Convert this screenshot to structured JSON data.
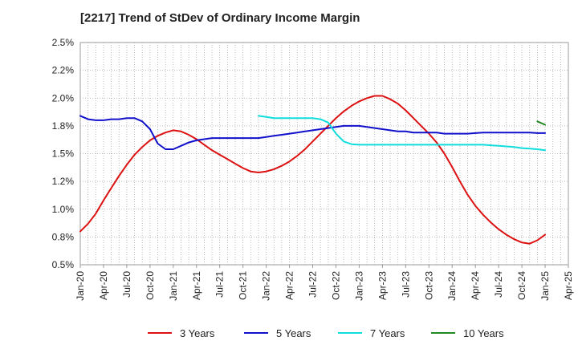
{
  "chart_data": {
    "type": "line",
    "title": "[2217]  Trend of StDev of Ordinary Income Margin",
    "xlabel": "",
    "ylabel": "",
    "ylim": [
      0.5,
      2.5
    ],
    "y_ticks": [
      "0.5%",
      "0.8%",
      "1.0%",
      "1.2%",
      "1.5%",
      "1.8%",
      "2.0%",
      "2.2%",
      "2.5%"
    ],
    "x_ticks": [
      "Jan-20",
      "Apr-20",
      "Jul-20",
      "Oct-20",
      "Jan-21",
      "Apr-21",
      "Jul-21",
      "Oct-21",
      "Jan-22",
      "Apr-22",
      "Jul-22",
      "Oct-22",
      "Jan-23",
      "Apr-23",
      "Jul-23",
      "Oct-23",
      "Jan-24",
      "Apr-24",
      "Jul-24",
      "Oct-24",
      "Jan-25",
      "Apr-25"
    ],
    "grid": true,
    "legend_position": "bottom",
    "series": [
      {
        "name": "3 Years",
        "color": "#dd1111",
        "x": [
          "2020-01",
          "2020-02",
          "2020-03",
          "2020-04",
          "2020-05",
          "2020-06",
          "2020-07",
          "2020-08",
          "2020-09",
          "2020-10",
          "2020-11",
          "2020-12",
          "2021-01",
          "2021-02",
          "2021-03",
          "2021-04",
          "2021-05",
          "2021-06",
          "2021-07",
          "2021-08",
          "2021-09",
          "2021-10",
          "2021-11",
          "2021-12",
          "2022-01",
          "2022-02",
          "2022-03",
          "2022-04",
          "2022-05",
          "2022-06",
          "2022-07",
          "2022-08",
          "2022-09",
          "2022-10",
          "2022-11",
          "2022-12",
          "2023-01",
          "2023-02",
          "2023-03",
          "2023-04",
          "2023-05",
          "2023-06",
          "2023-07",
          "2023-08",
          "2023-09",
          "2023-10",
          "2023-11",
          "2023-12",
          "2024-01",
          "2024-02",
          "2024-03",
          "2024-04",
          "2024-05",
          "2024-06",
          "2024-07",
          "2024-08",
          "2024-09",
          "2024-10",
          "2024-11",
          "2024-12",
          "2025-01"
        ],
        "values": [
          0.8,
          0.87,
          0.96,
          1.08,
          1.19,
          1.3,
          1.4,
          1.49,
          1.56,
          1.62,
          1.66,
          1.69,
          1.71,
          1.7,
          1.67,
          1.63,
          1.58,
          1.53,
          1.49,
          1.45,
          1.41,
          1.37,
          1.34,
          1.33,
          1.34,
          1.36,
          1.39,
          1.43,
          1.48,
          1.54,
          1.61,
          1.68,
          1.75,
          1.82,
          1.88,
          1.93,
          1.97,
          2.0,
          2.02,
          2.02,
          1.99,
          1.95,
          1.89,
          1.82,
          1.75,
          1.68,
          1.6,
          1.5,
          1.38,
          1.25,
          1.13,
          1.03,
          0.95,
          0.88,
          0.82,
          0.77,
          0.73,
          0.7,
          0.69,
          0.72,
          0.77
        ]
      },
      {
        "name": "5 Years",
        "color": "#1111cc",
        "x": [
          "2020-01",
          "2020-02",
          "2020-03",
          "2020-04",
          "2020-05",
          "2020-06",
          "2020-07",
          "2020-08",
          "2020-09",
          "2020-10",
          "2020-11",
          "2020-12",
          "2021-01",
          "2021-02",
          "2021-03",
          "2021-04",
          "2021-05",
          "2021-06",
          "2021-07",
          "2021-08",
          "2021-09",
          "2021-10",
          "2021-11",
          "2021-12",
          "2022-01",
          "2022-02",
          "2022-03",
          "2022-04",
          "2022-05",
          "2022-06",
          "2022-07",
          "2022-08",
          "2022-09",
          "2022-10",
          "2022-11",
          "2022-12",
          "2023-01",
          "2023-02",
          "2023-03",
          "2023-04",
          "2023-05",
          "2023-06",
          "2023-07",
          "2023-08",
          "2023-09",
          "2023-10",
          "2023-11",
          "2023-12",
          "2024-01",
          "2024-02",
          "2024-03",
          "2024-04",
          "2024-05",
          "2024-06",
          "2024-07",
          "2024-08",
          "2024-09",
          "2024-10",
          "2024-11",
          "2024-12",
          "2025-01"
        ],
        "values": [
          1.84,
          1.81,
          1.8,
          1.8,
          1.81,
          1.81,
          1.82,
          1.82,
          1.79,
          1.72,
          1.59,
          1.54,
          1.54,
          1.57,
          1.6,
          1.62,
          1.63,
          1.64,
          1.64,
          1.64,
          1.64,
          1.64,
          1.64,
          1.64,
          1.65,
          1.66,
          1.67,
          1.68,
          1.69,
          1.7,
          1.71,
          1.72,
          1.73,
          1.74,
          1.75,
          1.75,
          1.75,
          1.74,
          1.73,
          1.72,
          1.71,
          1.7,
          1.7,
          1.69,
          1.69,
          1.69,
          1.69,
          1.68,
          1.68,
          1.68,
          1.68,
          1.685,
          1.69,
          1.69,
          1.69,
          1.69,
          1.69,
          1.69,
          1.69,
          1.685,
          1.685
        ]
      },
      {
        "name": "7 Years",
        "color": "#11dddd",
        "x": [
          "2021-12",
          "2022-01",
          "2022-02",
          "2022-03",
          "2022-04",
          "2022-05",
          "2022-06",
          "2022-07",
          "2022-08",
          "2022-09",
          "2022-10",
          "2022-11",
          "2022-12",
          "2023-01",
          "2023-02",
          "2023-03",
          "2023-04",
          "2023-05",
          "2023-06",
          "2023-07",
          "2023-08",
          "2023-09",
          "2023-10",
          "2023-11",
          "2023-12",
          "2024-01",
          "2024-02",
          "2024-03",
          "2024-04",
          "2024-05",
          "2024-06",
          "2024-07",
          "2024-08",
          "2024-09",
          "2024-10",
          "2024-11",
          "2024-12",
          "2025-01"
        ],
        "values": [
          1.84,
          1.83,
          1.82,
          1.82,
          1.82,
          1.82,
          1.82,
          1.82,
          1.81,
          1.78,
          1.68,
          1.61,
          1.585,
          1.58,
          1.58,
          1.58,
          1.58,
          1.58,
          1.58,
          1.58,
          1.58,
          1.58,
          1.58,
          1.58,
          1.58,
          1.58,
          1.58,
          1.58,
          1.58,
          1.58,
          1.575,
          1.57,
          1.565,
          1.56,
          1.55,
          1.545,
          1.54,
          1.53
        ]
      },
      {
        "name": "10 Years",
        "color": "#228822",
        "x": [
          "2024-12",
          "2025-01"
        ],
        "values": [
          1.79,
          1.76
        ]
      }
    ]
  }
}
